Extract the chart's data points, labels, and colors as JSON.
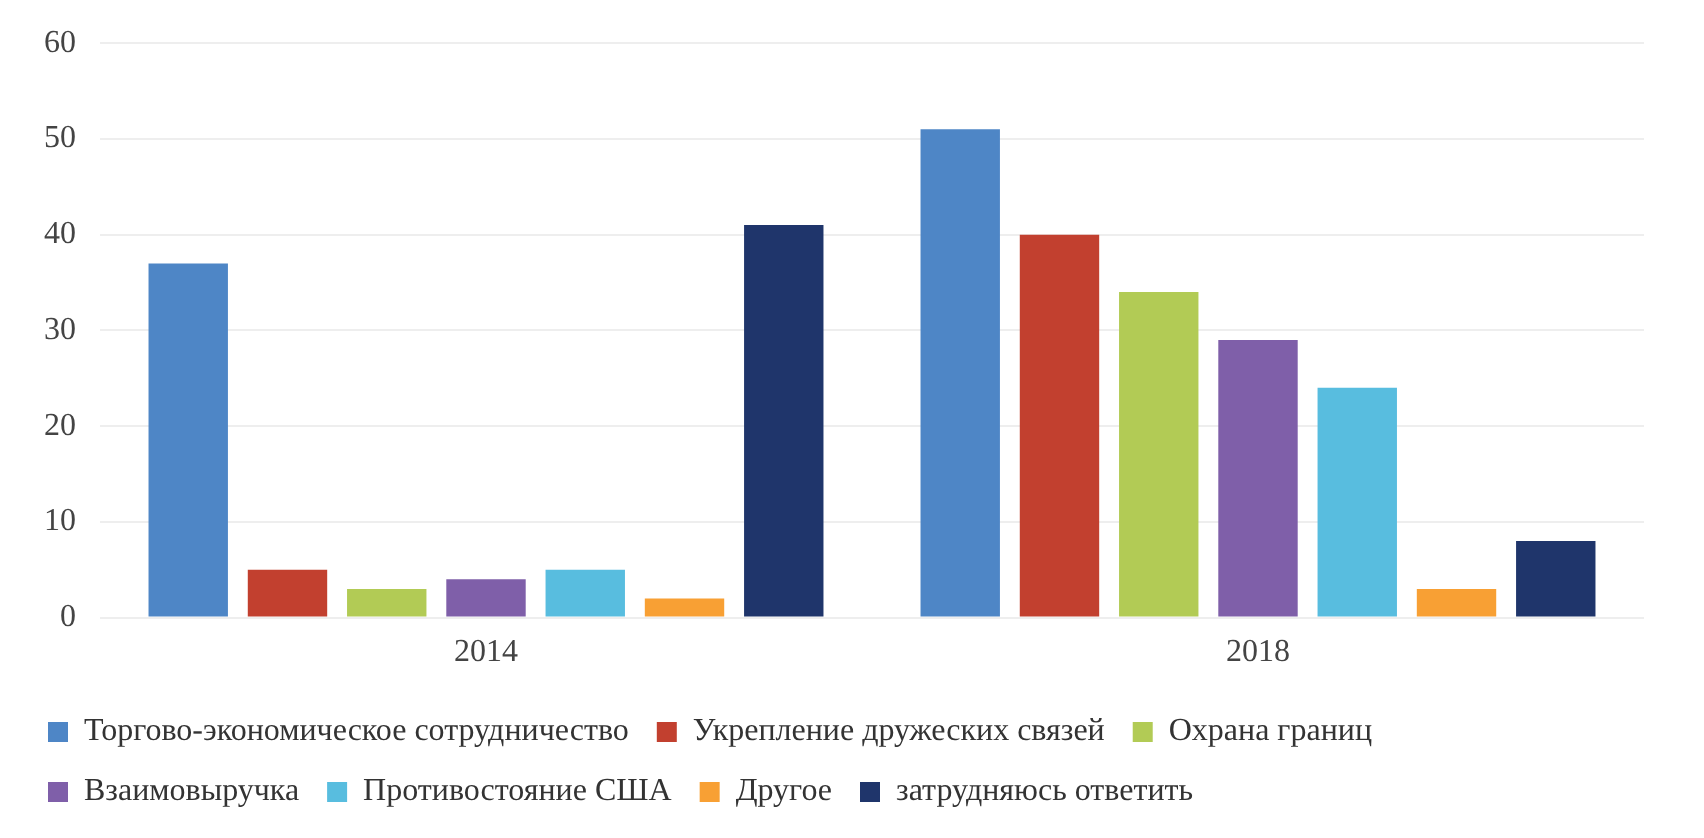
{
  "chart_data": {
    "type": "bar",
    "categories": [
      "2014",
      "2018"
    ],
    "series": [
      {
        "name": "Торгово-экономическое сотрудничество",
        "color": "#4e86c6",
        "values": [
          37,
          51
        ]
      },
      {
        "name": "Укрепление дружеских связей",
        "color": "#c2402f",
        "values": [
          5,
          40
        ]
      },
      {
        "name": "Охрана границ",
        "color": "#b2cb55",
        "values": [
          3,
          34
        ]
      },
      {
        "name": "Взаимовыручка",
        "color": "#7f5fa9",
        "values": [
          4,
          29
        ]
      },
      {
        "name": "Противостояние США",
        "color": "#58bddf",
        "values": [
          5,
          24
        ]
      },
      {
        "name": "Другое",
        "color": "#f8a034",
        "values": [
          2,
          3
        ]
      },
      {
        "name": "затрудняюсь ответить",
        "color": "#1f356b",
        "values": [
          41,
          8
        ]
      }
    ],
    "ylim": [
      0,
      60
    ],
    "yticks": [
      0,
      10,
      20,
      30,
      40,
      50,
      60
    ],
    "grid": "y",
    "legend": "bottom"
  }
}
